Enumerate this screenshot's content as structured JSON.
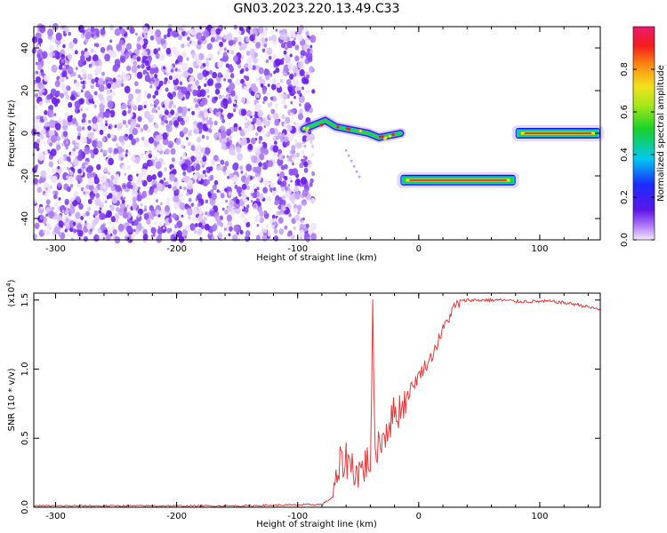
{
  "title": "GN03.2023.220.13.49.C33",
  "colors": {
    "snr_line": "#e8393a",
    "noise_dots": "#7a2cf0",
    "axis": "#000000"
  },
  "chart_data": [
    {
      "type": "heatmap",
      "title": "GN03.2023.220.13.49.C33",
      "xlabel": "Height of straight line (km)",
      "ylabel": "Frequency (Hz)",
      "xlim": [
        -318,
        150
      ],
      "ylim": [
        -50,
        50
      ],
      "xticks": [
        -300,
        -200,
        -100,
        0,
        100
      ],
      "yticks": [
        -40,
        -20,
        0,
        20,
        40
      ],
      "colorbar": {
        "label": "Normalized spectral amplitude",
        "ticks": [
          0.0,
          0.2,
          0.4,
          0.6,
          0.8
        ],
        "tick_labels": [
          "0.0",
          "0.2",
          "0.4",
          "0.6",
          "0.8"
        ],
        "range": [
          0,
          1
        ],
        "colormap": "rainbow (purple-blue-cyan-green-yellow-red-magenta)"
      },
      "features": [
        {
          "name": "broadband noise",
          "x_range": [
            -318,
            -85
          ],
          "freq_range": [
            -50,
            50
          ],
          "amplitude": 0.15
        },
        {
          "name": "wavering tone",
          "x_range": [
            -95,
            -15
          ],
          "freq": [
            2,
            4,
            6,
            3,
            2,
            1,
            0,
            -2,
            -1,
            0
          ],
          "amplitude": 0.6
        },
        {
          "name": "band at -22 Hz",
          "x_range": [
            -15,
            80
          ],
          "freq": -22,
          "amplitude": 0.9
        },
        {
          "name": "band at 0 Hz",
          "x_range": [
            80,
            150
          ],
          "freq": 0,
          "amplitude": 0.9
        }
      ]
    },
    {
      "type": "line",
      "xlabel": "Height of straight line (km)",
      "ylabel": "SNR (10 * v/v)",
      "yscale_label": "(x10",
      "yscale_exp": "4",
      "yscale_close": ")",
      "xlim": [
        -318,
        150
      ],
      "ylim": [
        0,
        1.55
      ],
      "xticks": [
        -300,
        -200,
        -100,
        0,
        100
      ],
      "yticks": [
        0.0,
        0.5,
        1.0,
        1.5
      ],
      "ytick_labels": [
        "0.0",
        "0.5",
        "1.0",
        "1.5"
      ],
      "series": [
        {
          "x": [
            -318,
            -250,
            -150,
            -80,
            -70,
            -65,
            -60,
            -55,
            -50,
            -45,
            -40,
            -38,
            -36,
            -35,
            -30,
            -25,
            -20,
            -15,
            -10,
            -5,
            0,
            5,
            10,
            15,
            20,
            25,
            30,
            35,
            40,
            50,
            60,
            70,
            80,
            90,
            100,
            110,
            120,
            130,
            140,
            150
          ],
          "y": [
            0.01,
            0.01,
            0.01,
            0.02,
            0.08,
            0.3,
            0.35,
            0.3,
            0.25,
            0.3,
            0.35,
            1.38,
            0.3,
            0.45,
            0.5,
            0.6,
            0.68,
            0.72,
            0.8,
            0.88,
            0.95,
            1.02,
            1.08,
            1.18,
            1.28,
            1.38,
            1.45,
            1.49,
            1.5,
            1.5,
            1.5,
            1.5,
            1.49,
            1.49,
            1.49,
            1.49,
            1.48,
            1.47,
            1.45,
            1.43
          ]
        }
      ]
    }
  ]
}
